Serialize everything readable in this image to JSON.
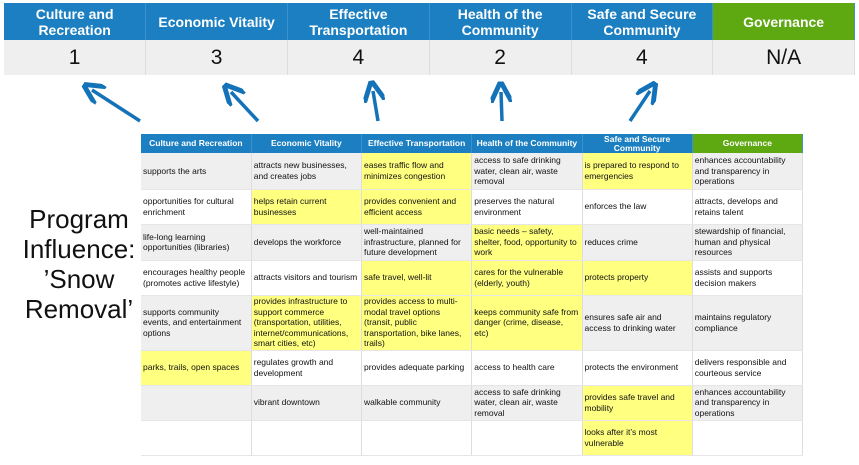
{
  "summary": {
    "headers": [
      "Culture and Recreation",
      "Economic Vitality",
      "Effective Transportation",
      "Health of the Community",
      "Safe and Secure Community",
      "Governance"
    ],
    "scores": [
      "1",
      "3",
      "4",
      "2",
      "4",
      "N/A"
    ]
  },
  "title": "Program Influence: ’Snow Removal’",
  "colors": {
    "header_blue": "#1b7fc1",
    "governance_green": "#5ea811",
    "highlight": "#ffff80",
    "row_grey": "#efefef",
    "arrow": "#1473b8"
  },
  "grid": {
    "headers": [
      "Culture and Recreation",
      "Economic Vitality",
      "Effective Transportation",
      "Health of the Community",
      "Safe and Secure Community",
      "Governance"
    ],
    "rows": [
      [
        {
          "t": "supports the arts"
        },
        {
          "t": "attracts new businesses, and creates jobs"
        },
        {
          "t": "eases traffic flow and minimizes congestion",
          "h": true
        },
        {
          "t": "access to safe drinking water, clean air, waste removal"
        },
        {
          "t": "is prepared to respond to emergencies",
          "h": true
        },
        {
          "t": "enhances accountability and transparency in operations"
        }
      ],
      [
        {
          "t": "opportunities for cultural enrichment"
        },
        {
          "t": "helps retain current businesses",
          "h": true
        },
        {
          "t": "provides convenient and efficient access",
          "h": true
        },
        {
          "t": "preserves the natural environment"
        },
        {
          "t": "enforces the law"
        },
        {
          "t": "attracts, develops and retains talent"
        }
      ],
      [
        {
          "t": "life-long learning opportunities (libraries)"
        },
        {
          "t": "develops the workforce"
        },
        {
          "t": "well-maintained infrastructure, planned for future development"
        },
        {
          "t": "basic needs – safety, shelter, food, opportunity to work",
          "h": true
        },
        {
          "t": "reduces crime"
        },
        {
          "t": "stewardship of financial, human and physical resources"
        }
      ],
      [
        {
          "t": "encourages healthy people (promotes active lifestyle)"
        },
        {
          "t": "attracts visitors and tourism"
        },
        {
          "t": "safe travel, well-lit",
          "h": true
        },
        {
          "t": "cares for the vulnerable (elderly, youth)",
          "h": true
        },
        {
          "t": "protects property",
          "h": true
        },
        {
          "t": "assists and supports decision makers"
        }
      ],
      [
        {
          "t": "supports community events, and entertainment options"
        },
        {
          "t": "provides infrastructure to support commerce (transportation, utilities, internet/communications, smart cities, etc)",
          "h": true
        },
        {
          "t": "provides access to multi-modal travel options (transit, public transportation, bike lanes, trails)",
          "h": true
        },
        {
          "t": "keeps community safe from danger (crime, disease, etc)",
          "h": true
        },
        {
          "t": "ensures safe air and access to drinking water"
        },
        {
          "t": "maintains regulatory compliance"
        }
      ],
      [
        {
          "t": "parks, trails, open spaces",
          "h": true
        },
        {
          "t": "regulates growth and development"
        },
        {
          "t": "provides adequate parking"
        },
        {
          "t": "access to health care"
        },
        {
          "t": "protects the environment"
        },
        {
          "t": "delivers responsible and courteous service"
        }
      ],
      [
        {
          "t": ""
        },
        {
          "t": "vibrant downtown"
        },
        {
          "t": "walkable community"
        },
        {
          "t": "access to safe drinking water, clean air, waste removal"
        },
        {
          "t": "provides safe travel and mobility",
          "h": true
        },
        {
          "t": "enhances accountability and transparency in operations"
        }
      ],
      [
        {
          "t": ""
        },
        {
          "t": ""
        },
        {
          "t": ""
        },
        {
          "t": ""
        },
        {
          "t": "looks after it’s most vulnerable",
          "h": true
        },
        {
          "t": ""
        }
      ]
    ]
  }
}
